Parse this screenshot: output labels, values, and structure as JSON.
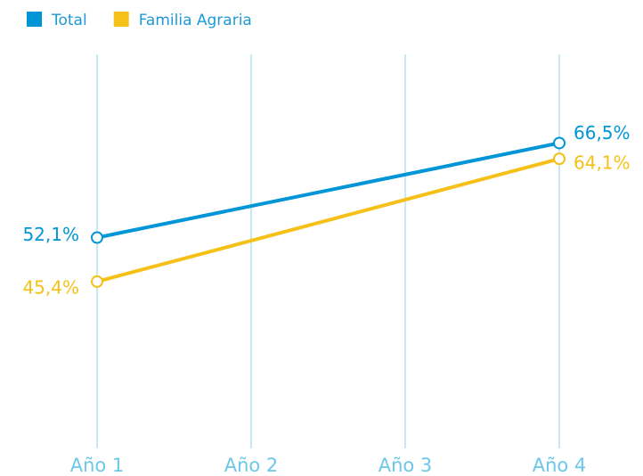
{
  "chart_data": {
    "type": "line",
    "x": [
      1,
      4
    ],
    "xlim": [
      1,
      4
    ],
    "xticks": [
      {
        "value": 1,
        "label": "Año 1"
      },
      {
        "value": 2,
        "label": "Año 2"
      },
      {
        "value": 3,
        "label": "Año 3"
      },
      {
        "value": 4,
        "label": "Año 4"
      }
    ],
    "ylim": [
      20,
      80
    ],
    "grid": true,
    "legend": "top-left",
    "series": [
      {
        "name": "Total",
        "color": "#0095d6",
        "values": [
          52.1,
          66.5
        ],
        "value_labels": [
          "52,1%",
          "66,5%"
        ]
      },
      {
        "name": "Familia Agraria",
        "color": "#f5c018",
        "values": [
          45.4,
          64.1
        ],
        "value_labels": [
          "45,4%",
          "64,1%"
        ]
      }
    ]
  }
}
